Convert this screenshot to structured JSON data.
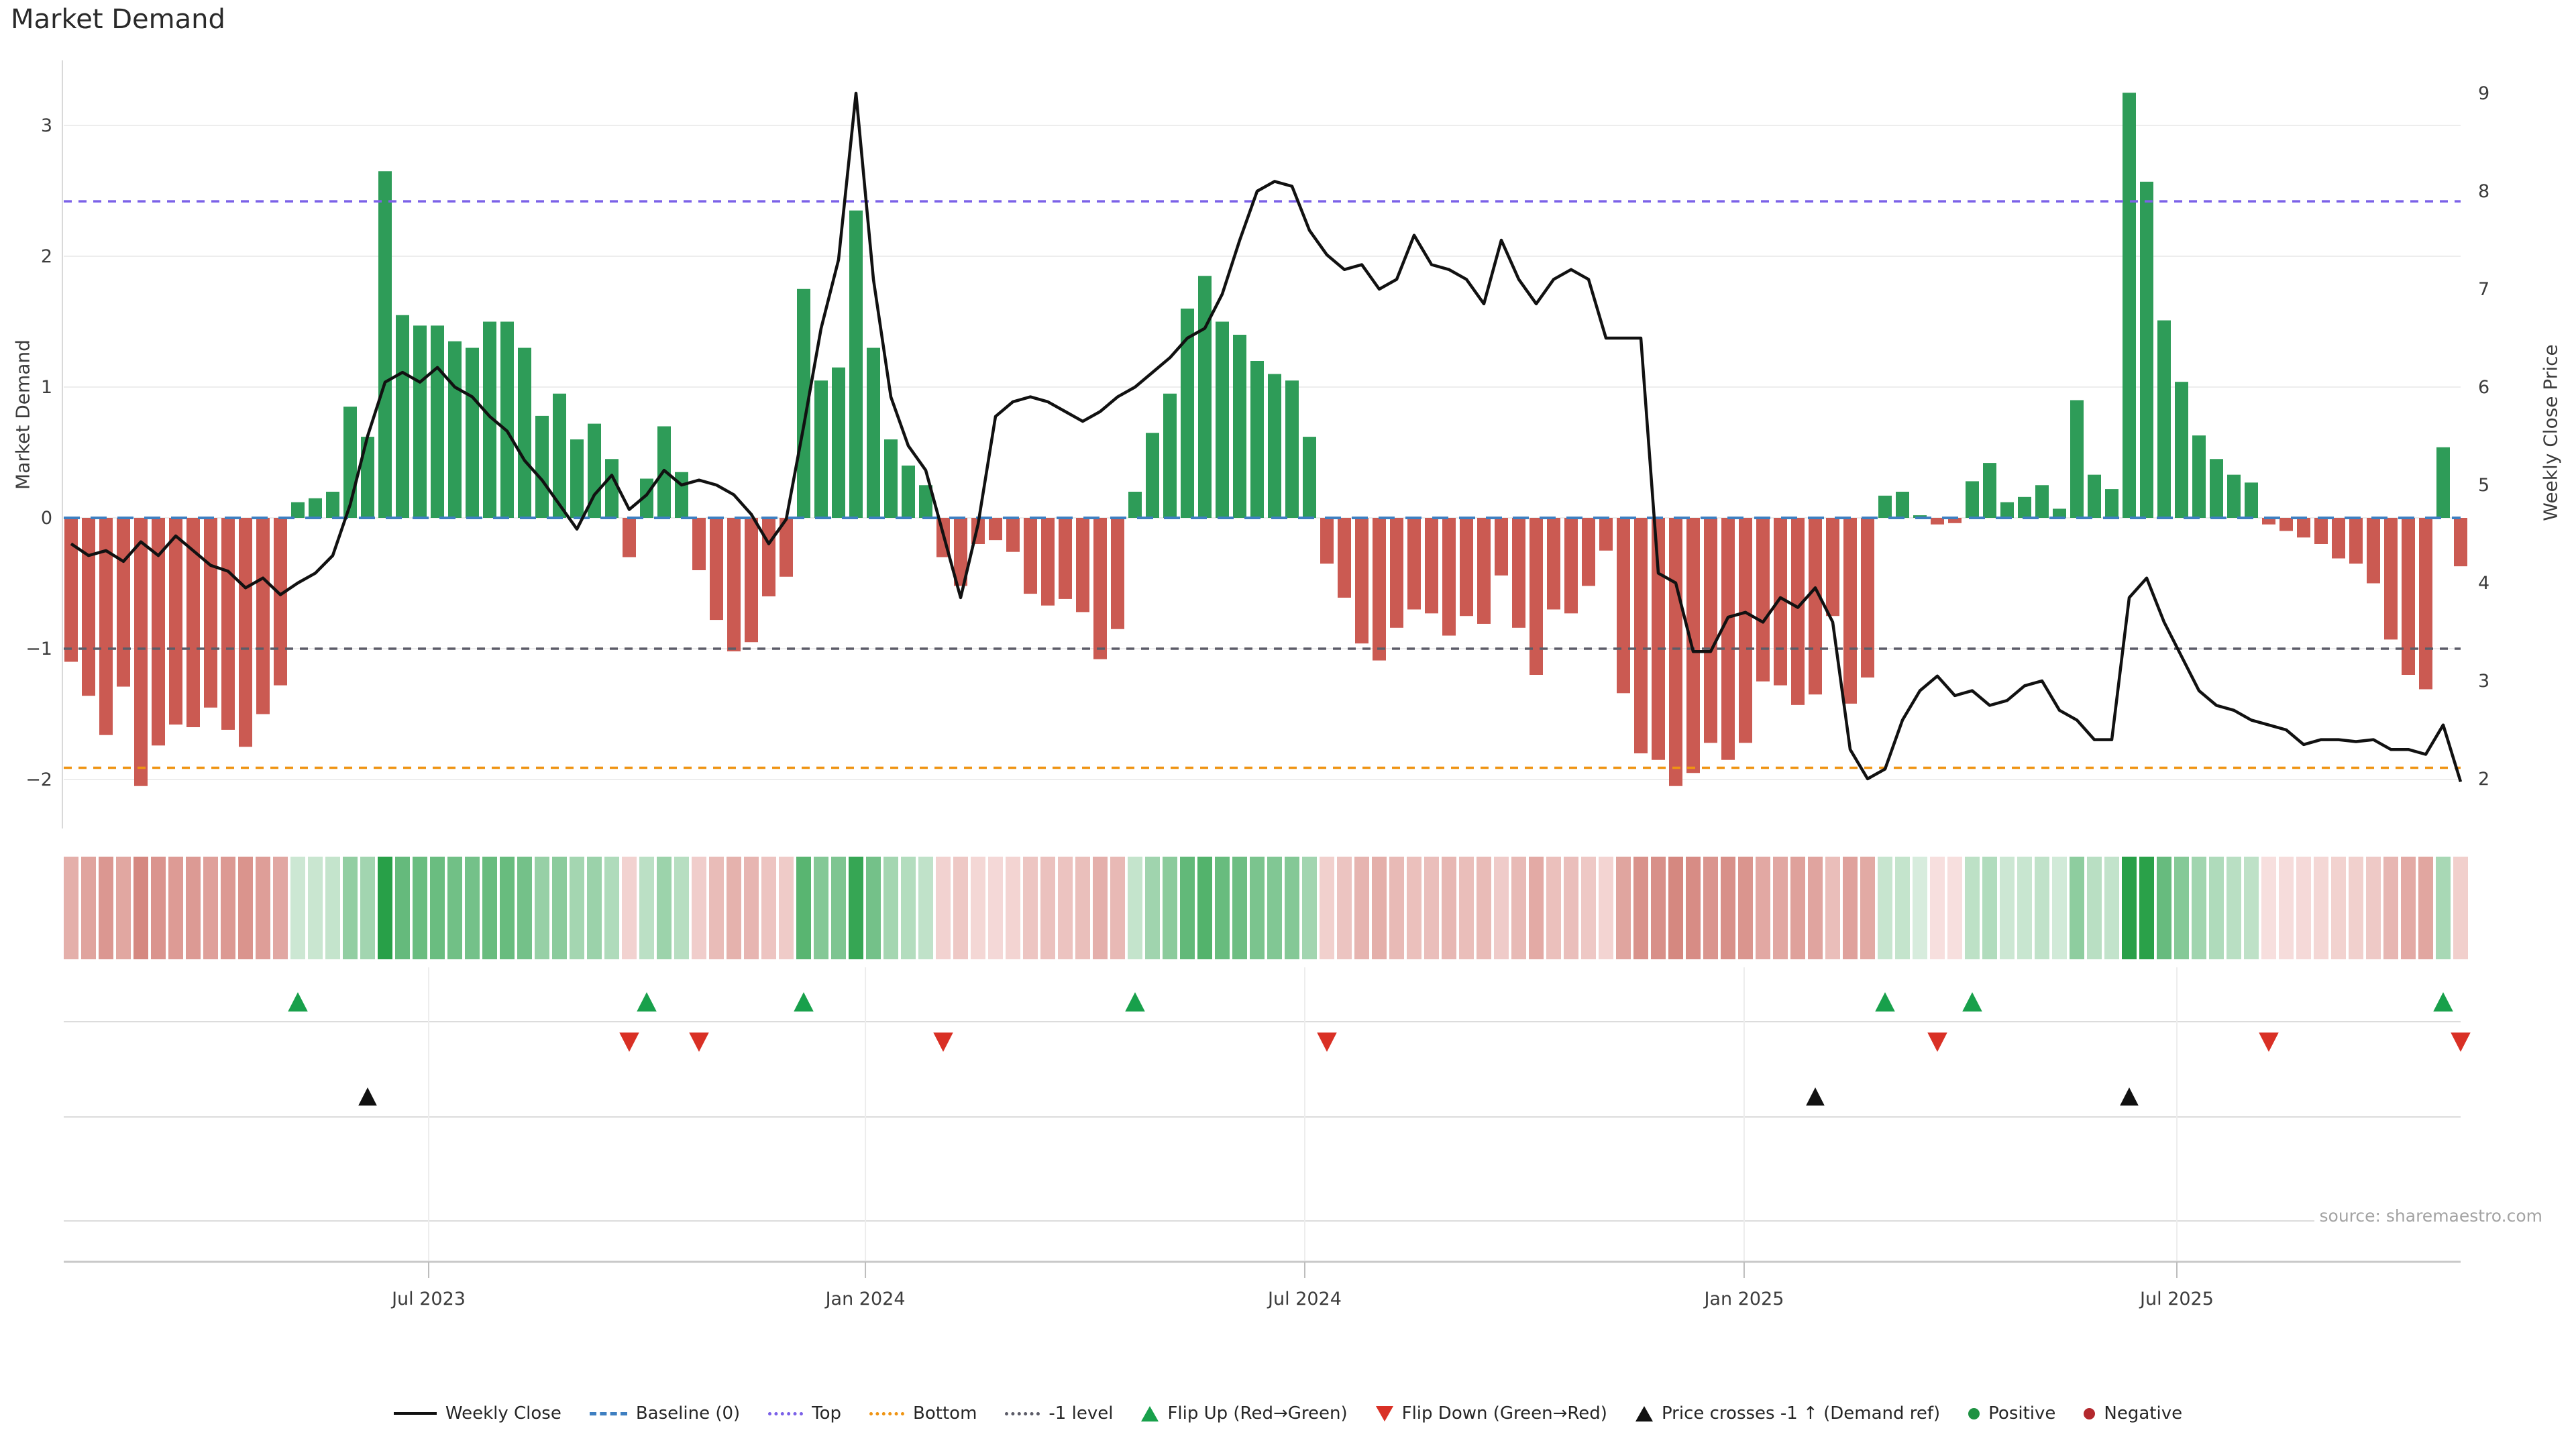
{
  "title": "Market Demand",
  "source_text": "source: sharemaestro.com",
  "colors": {
    "bar_positive": "#2e9c58",
    "bar_negative": "#cb5a52",
    "price_line": "#111111",
    "baseline": "#3e7fc1",
    "top_level": "#7b61e8",
    "bottom_level": "#ef9413",
    "minus1_level": "#5c5c68",
    "flip_up": "#18a04b",
    "flip_down": "#d93025",
    "price_cross": "#111111",
    "positive_dot": "#1f9243",
    "negative_dot": "#b3282d",
    "grid": "#ededed",
    "axis_text": "#3c3c3c",
    "heat_green_dark": "#28a048",
    "heat_green_light": "#dbeee0",
    "heat_red_dark": "#d3827a",
    "heat_red_light": "#f8e2e1"
  },
  "axes": {
    "left": {
      "label": "Market Demand",
      "ticks": [
        "3",
        "2",
        "1",
        "0",
        "−1",
        "−2"
      ],
      "tick_values": [
        3,
        2,
        1,
        0,
        -1,
        -2
      ]
    },
    "right": {
      "label": "Weekly Close Price",
      "ticks": [
        "9",
        "8",
        "7",
        "6",
        "5",
        "4",
        "3",
        "2"
      ],
      "tick_values": [
        9,
        8,
        7,
        6,
        5,
        4,
        3,
        2
      ]
    },
    "x": {
      "ticks": [
        {
          "label": "Jul 2023",
          "i": 20.5
        },
        {
          "label": "Jan 2024",
          "i": 45.54
        },
        {
          "label": "Jul 2024",
          "i": 70.73
        },
        {
          "label": "Jan 2025",
          "i": 95.92
        },
        {
          "label": "Jul 2025",
          "i": 120.73
        }
      ]
    }
  },
  "legend": {
    "items": [
      {
        "label": "Weekly Close",
        "glyph": "line",
        "color": "#111111",
        "icon": "weekly-close-line-icon"
      },
      {
        "label": "Baseline (0)",
        "glyph": "dashed",
        "color": "#3e7fc1",
        "icon": "baseline-dash-icon"
      },
      {
        "label": "Top",
        "glyph": "dotted",
        "color": "#7b61e8",
        "icon": "top-level-dots-icon"
      },
      {
        "label": "Bottom",
        "glyph": "dotted",
        "color": "#ef9413",
        "icon": "bottom-level-dots-icon"
      },
      {
        "label": "-1 level",
        "glyph": "dotted",
        "color": "#5c5c68",
        "icon": "minus1-level-dots-icon"
      },
      {
        "label": "Flip Up (Red→Green)",
        "glyph": "tri-up",
        "color": "#18a04b",
        "icon": "flip-up-triangle-icon"
      },
      {
        "label": "Flip Down (Green→Red)",
        "glyph": "tri-down",
        "color": "#d93025",
        "icon": "flip-down-triangle-icon"
      },
      {
        "label": "Price crosses -1 ↑ (Demand ref)",
        "glyph": "tri-up",
        "color": "#111111",
        "icon": "price-cross-triangle-icon"
      },
      {
        "label": "Positive",
        "glyph": "dot",
        "color": "#1f9243",
        "icon": "positive-dot-icon"
      },
      {
        "label": "Negative",
        "glyph": "dot",
        "color": "#b3282d",
        "icon": "negative-dot-icon"
      }
    ]
  },
  "chart_data": {
    "type": "bar+line",
    "title": "Market Demand",
    "x_unit": "week",
    "n_points": 138,
    "ylabel_left": "Market Demand",
    "ylabel_right": "Weekly Close Price",
    "ylim_left": [
      -2.37,
      3.5
    ],
    "ylim_right": [
      1.49,
      9.34
    ],
    "grid": true,
    "levels": {
      "baseline": 0,
      "top": 2.42,
      "bottom": -1.91,
      "minus1": -1
    },
    "demand": [
      -1.1,
      -1.36,
      -1.66,
      -1.29,
      -2.05,
      -1.74,
      -1.58,
      -1.6,
      -1.45,
      -1.62,
      -1.75,
      -1.5,
      -1.28,
      0.12,
      0.15,
      0.2,
      0.85,
      0.62,
      2.65,
      1.55,
      1.47,
      1.47,
      1.35,
      1.3,
      1.5,
      1.5,
      1.3,
      0.78,
      0.95,
      0.6,
      0.72,
      0.45,
      -0.3,
      0.3,
      0.7,
      0.35,
      -0.4,
      -0.78,
      -1.02,
      -0.95,
      -0.6,
      -0.45,
      1.75,
      1.05,
      1.15,
      2.35,
      1.3,
      0.6,
      0.4,
      0.25,
      -0.3,
      -0.52,
      -0.2,
      -0.17,
      -0.26,
      -0.58,
      -0.67,
      -0.62,
      -0.72,
      -1.08,
      -0.85,
      0.2,
      0.65,
      0.95,
      1.6,
      1.85,
      1.5,
      1.4,
      1.2,
      1.1,
      1.05,
      0.62,
      -0.35,
      -0.61,
      -0.96,
      -1.09,
      -0.84,
      -0.7,
      -0.73,
      -0.9,
      -0.75,
      -0.81,
      -0.44,
      -0.84,
      -1.2,
      -0.7,
      -0.73,
      -0.52,
      -0.25,
      -1.34,
      -1.8,
      -1.85,
      -2.05,
      -1.95,
      -1.72,
      -1.85,
      -1.72,
      -1.25,
      -1.28,
      -1.43,
      -1.35,
      -0.75,
      -1.42,
      -1.22,
      0.17,
      0.2,
      0.02,
      -0.05,
      -0.04,
      0.28,
      0.42,
      0.12,
      0.16,
      0.25,
      0.07,
      0.9,
      0.33,
      0.22,
      3.25,
      2.57,
      1.51,
      1.04,
      0.63,
      0.45,
      0.33,
      0.27,
      -0.05,
      -0.1,
      -0.15,
      -0.2,
      -0.31,
      -0.35,
      -0.5,
      -0.93,
      -1.2,
      -1.31,
      0.54,
      -0.37
    ],
    "price": [
      4.4,
      4.28,
      4.33,
      4.22,
      4.42,
      4.28,
      4.48,
      4.33,
      4.18,
      4.12,
      3.95,
      4.05,
      3.88,
      4.0,
      4.1,
      4.28,
      4.8,
      5.5,
      6.05,
      6.15,
      6.05,
      6.2,
      6.0,
      5.9,
      5.7,
      5.55,
      5.25,
      5.05,
      4.8,
      4.55,
      4.9,
      5.1,
      4.75,
      4.9,
      5.15,
      5.0,
      5.05,
      5.0,
      4.9,
      4.7,
      4.4,
      4.65,
      5.6,
      6.6,
      7.3,
      9.0,
      7.1,
      5.9,
      5.4,
      5.15,
      4.5,
      3.85,
      4.6,
      5.7,
      5.85,
      5.9,
      5.85,
      5.75,
      5.65,
      5.75,
      5.9,
      6.0,
      6.15,
      6.3,
      6.5,
      6.6,
      6.95,
      7.5,
      8.0,
      8.1,
      8.05,
      7.6,
      7.35,
      7.2,
      7.25,
      7.0,
      7.1,
      7.55,
      7.25,
      7.2,
      7.1,
      6.85,
      7.5,
      7.1,
      6.85,
      7.1,
      7.2,
      7.1,
      6.5,
      6.5,
      6.5,
      4.1,
      4.0,
      3.3,
      3.3,
      3.65,
      3.7,
      3.6,
      3.85,
      3.75,
      3.95,
      3.6,
      2.3,
      2.0,
      2.1,
      2.6,
      2.9,
      3.05,
      2.85,
      2.9,
      2.75,
      2.8,
      2.95,
      3.0,
      2.7,
      2.6,
      2.4,
      2.4,
      3.85,
      4.05,
      3.6,
      3.25,
      2.9,
      2.75,
      2.7,
      2.6,
      2.55,
      2.5,
      2.35,
      2.4,
      2.4,
      2.38,
      2.4,
      2.3,
      2.3,
      2.25,
      2.55,
      1.97
    ],
    "markers": {
      "flip_up": [
        14,
        34,
        43,
        62,
        105,
        110,
        137
      ],
      "flip_down": [
        33,
        37,
        51,
        73,
        108,
        127,
        138
      ],
      "price_cross_minus1": [
        18,
        101,
        119
      ]
    },
    "legend_position": "bottom-center"
  }
}
